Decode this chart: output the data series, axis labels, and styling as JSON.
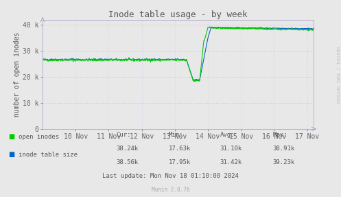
{
  "title": "Inode table usage - by week",
  "ylabel": "number of open inodes",
  "background_color": "#e8e8e8",
  "plot_bg_color": "#e8e8e8",
  "grid_color_major": "#ffaaaa",
  "grid_color_minor": "#ccccee",
  "tick_color": "#666666",
  "text_color": "#555555",
  "open_inodes_color": "#00cc00",
  "inode_table_color": "#0066cc",
  "axis_color": "#aaaacc",
  "ylim": [
    0,
    42000
  ],
  "yticks": [
    0,
    10000,
    20000,
    30000,
    40000
  ],
  "ytick_labels": [
    "0",
    "10 k",
    "20 k",
    "30 k",
    "40 k"
  ],
  "xtick_labels": [
    "10 Nov",
    "11 Nov",
    "12 Nov",
    "13 Nov",
    "14 Nov",
    "15 Nov",
    "16 Nov",
    "17 Nov"
  ],
  "legend_items": [
    "open inodes",
    "inode table size"
  ],
  "legend_colors": [
    "#00cc00",
    "#0066cc"
  ],
  "stats_header": [
    "Cur:",
    "Min:",
    "Avg:",
    "Max:"
  ],
  "stats_open_inodes": [
    "38.24k",
    "17.63k",
    "31.10k",
    "38.91k"
  ],
  "stats_inode_table": [
    "38.56k",
    "17.95k",
    "31.42k",
    "39.23k"
  ],
  "last_update": "Last update: Mon Nov 18 01:10:00 2024",
  "munin_version": "Munin 2.0.76",
  "watermark": "RRDTOOL / TOBI OETIKER"
}
